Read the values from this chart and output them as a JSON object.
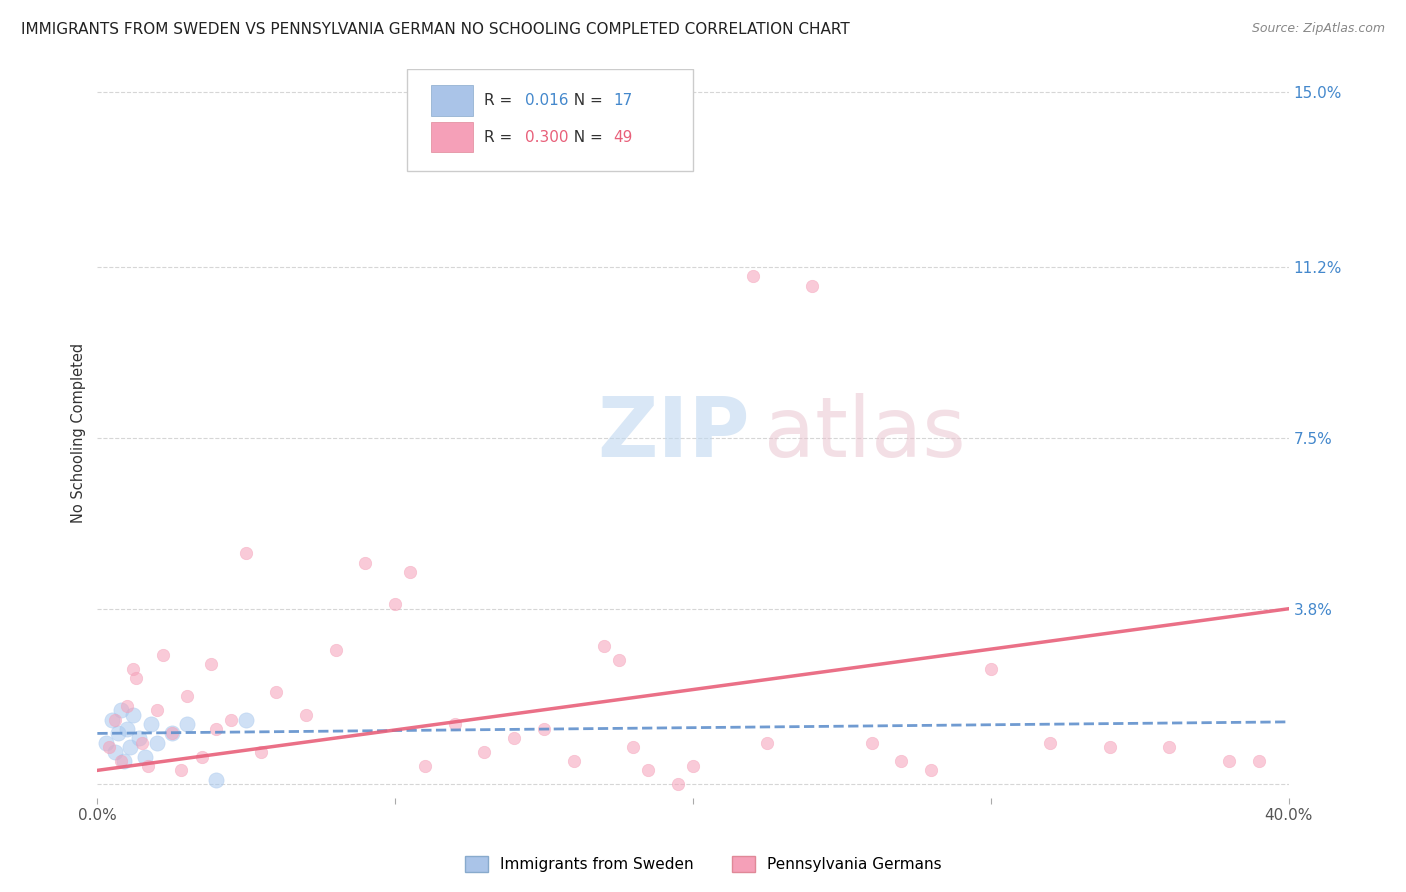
{
  "title": "IMMIGRANTS FROM SWEDEN VS PENNSYLVANIA GERMAN NO SCHOOLING COMPLETED CORRELATION CHART",
  "source": "Source: ZipAtlas.com",
  "ylabel": "No Schooling Completed",
  "xlim": [
    0.0,
    40.0
  ],
  "ylim": [
    -0.3,
    15.5
  ],
  "yticks": [
    0.0,
    3.8,
    7.5,
    11.2,
    15.0
  ],
  "xticks": [
    0.0,
    10.0,
    20.0,
    30.0,
    40.0
  ],
  "xtick_labels_show": [
    "0.0%",
    "",
    "",
    "",
    "40.0%"
  ],
  "ytick_labels": [
    "",
    "3.8%",
    "7.5%",
    "11.2%",
    "15.0%"
  ],
  "legend_labels_bottom": [
    "Immigrants from Sweden",
    "Pennsylvania Germans"
  ],
  "sweden_color": "#a8c8ee",
  "pa_german_color": "#f5a0b8",
  "sweden_line_color": "#6090cc",
  "pa_german_line_color": "#e8607a",
  "sweden_points": [
    [
      0.3,
      0.9
    ],
    [
      0.5,
      1.4
    ],
    [
      0.6,
      0.7
    ],
    [
      0.7,
      1.1
    ],
    [
      0.8,
      1.6
    ],
    [
      0.9,
      0.5
    ],
    [
      1.0,
      1.2
    ],
    [
      1.1,
      0.8
    ],
    [
      1.2,
      1.5
    ],
    [
      1.4,
      1.0
    ],
    [
      1.6,
      0.6
    ],
    [
      1.8,
      1.3
    ],
    [
      2.0,
      0.9
    ],
    [
      2.5,
      1.1
    ],
    [
      3.0,
      1.3
    ],
    [
      4.0,
      0.1
    ],
    [
      5.0,
      1.4
    ]
  ],
  "pa_german_points": [
    [
      0.4,
      0.8
    ],
    [
      0.6,
      1.4
    ],
    [
      0.8,
      0.5
    ],
    [
      1.0,
      1.7
    ],
    [
      1.2,
      2.5
    ],
    [
      1.3,
      2.3
    ],
    [
      1.5,
      0.9
    ],
    [
      1.7,
      0.4
    ],
    [
      2.0,
      1.6
    ],
    [
      2.2,
      2.8
    ],
    [
      2.5,
      1.1
    ],
    [
      2.8,
      0.3
    ],
    [
      3.0,
      1.9
    ],
    [
      3.5,
      0.6
    ],
    [
      3.8,
      2.6
    ],
    [
      4.0,
      1.2
    ],
    [
      4.5,
      1.4
    ],
    [
      5.0,
      5.0
    ],
    [
      5.5,
      0.7
    ],
    [
      6.0,
      2.0
    ],
    [
      7.0,
      1.5
    ],
    [
      8.0,
      2.9
    ],
    [
      9.0,
      4.8
    ],
    [
      10.0,
      3.9
    ],
    [
      10.5,
      4.6
    ],
    [
      11.0,
      0.4
    ],
    [
      12.0,
      1.3
    ],
    [
      13.0,
      0.7
    ],
    [
      14.0,
      1.0
    ],
    [
      15.0,
      1.2
    ],
    [
      16.0,
      0.5
    ],
    [
      17.0,
      3.0
    ],
    [
      17.5,
      2.7
    ],
    [
      18.0,
      0.8
    ],
    [
      18.5,
      0.3
    ],
    [
      19.5,
      0.0
    ],
    [
      20.0,
      0.4
    ],
    [
      22.0,
      11.0
    ],
    [
      22.5,
      0.9
    ],
    [
      24.0,
      10.8
    ],
    [
      26.0,
      0.9
    ],
    [
      27.0,
      0.5
    ],
    [
      28.0,
      0.3
    ],
    [
      30.0,
      2.5
    ],
    [
      32.0,
      0.9
    ],
    [
      34.0,
      0.8
    ],
    [
      36.0,
      0.8
    ],
    [
      38.0,
      0.5
    ],
    [
      39.0,
      0.5
    ]
  ],
  "sweden_marker_size": 120,
  "pa_german_marker_size": 80,
  "background_color": "#ffffff",
  "grid_color": "#cccccc",
  "sweden_trend": [
    0.0,
    1.1,
    40.0,
    1.35
  ],
  "pa_german_trend": [
    0.0,
    0.3,
    40.0,
    3.8
  ]
}
